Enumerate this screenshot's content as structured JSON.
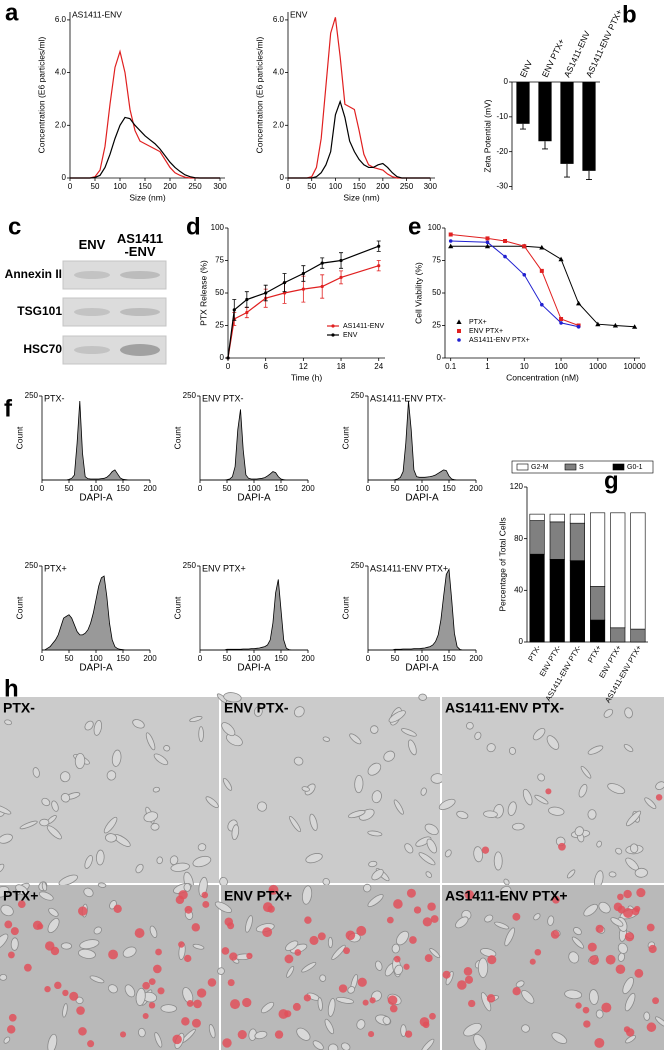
{
  "panel_labels": [
    "a",
    "b",
    "c",
    "d",
    "e",
    "f",
    "g",
    "h"
  ],
  "blot": {
    "columns": [
      "ENV",
      "AS1411\n-ENV"
    ],
    "rows": [
      "Annexin II",
      "TSG101",
      "HSC70"
    ]
  },
  "micrographs": [
    "PTX-",
    "ENV PTX-",
    "AS1411-ENV PTX-",
    "PTX+",
    "ENV PTX+",
    "AS1411-ENV PTX+"
  ],
  "chart_data": [
    {
      "type": "line",
      "title": "AS1411-ENV",
      "xlabel": "Size (nm)",
      "ylabel": "Concentration (E6 particles/ml)",
      "xlim": [
        0,
        310
      ],
      "xticks": [
        0,
        50,
        100,
        150,
        200,
        250,
        300
      ],
      "ylim": [
        0,
        6.3
      ],
      "yticks": [
        0,
        {
          "value": 2,
          "label": "2.0"
        },
        {
          "value": 4,
          "label": "4.0"
        },
        {
          "value": 6,
          "label": "6.0"
        }
      ],
      "x": [
        0,
        10,
        20,
        30,
        40,
        50,
        60,
        70,
        80,
        90,
        100,
        110,
        120,
        130,
        140,
        150,
        160,
        170,
        180,
        190,
        200,
        210,
        220,
        230,
        240,
        250,
        260,
        270,
        280,
        290,
        300
      ],
      "series": [
        {
          "color": "#e02020",
          "values": [
            0,
            0,
            0,
            0,
            0,
            0.05,
            0.3,
            1.2,
            2.8,
            4.2,
            4.8,
            4.0,
            2.6,
            1.8,
            1.4,
            1.3,
            1.2,
            1.1,
            1.0,
            0.7,
            0.4,
            0.2,
            0.1,
            0.03,
            0,
            0,
            0,
            0,
            0,
            0,
            0
          ]
        },
        {
          "color": "#000000",
          "values": [
            0,
            0,
            0,
            0,
            0,
            0.02,
            0.1,
            0.4,
            0.9,
            1.5,
            2.0,
            2.3,
            2.25,
            2.0,
            1.8,
            1.6,
            1.45,
            1.3,
            1.1,
            0.85,
            0.6,
            0.4,
            0.25,
            0.12,
            0.05,
            0.01,
            0,
            0,
            0,
            0,
            0
          ]
        }
      ]
    },
    {
      "type": "line",
      "title": "ENV",
      "xlabel": "Size (nm)",
      "ylabel": "Concentration (E6 particles/ml)",
      "xlim": [
        0,
        310
      ],
      "xticks": [
        0,
        50,
        100,
        150,
        200,
        250,
        300
      ],
      "ylim": [
        0,
        6.3
      ],
      "yticks": [
        0,
        {
          "value": 2,
          "label": "2.0"
        },
        {
          "value": 4,
          "label": "4.0"
        },
        {
          "value": 6,
          "label": "6.0"
        }
      ],
      "x": [
        0,
        10,
        20,
        30,
        40,
        50,
        60,
        70,
        80,
        90,
        100,
        110,
        120,
        130,
        140,
        150,
        160,
        170,
        180,
        190,
        200,
        210,
        220,
        230,
        240,
        250,
        260,
        270,
        280,
        290,
        300
      ],
      "series": [
        {
          "color": "#e02020",
          "values": [
            0,
            0,
            0,
            0,
            0,
            0.05,
            0.4,
            1.5,
            3.5,
            5.5,
            6.1,
            4.6,
            2.8,
            2.7,
            2.6,
            1.8,
            0.9,
            0.5,
            0.4,
            0.35,
            0.3,
            0.15,
            0.05,
            0,
            0,
            0,
            0,
            0,
            0,
            0,
            0
          ]
        },
        {
          "color": "#000000",
          "values": [
            0,
            0,
            0,
            0,
            0,
            0,
            0.05,
            0.2,
            0.5,
            1.0,
            2.4,
            2.9,
            2.3,
            1.4,
            1.0,
            0.7,
            0.5,
            0.4,
            0.4,
            0.5,
            0.55,
            0.4,
            0.2,
            0.05,
            0,
            0,
            0,
            0,
            0,
            0,
            0
          ]
        }
      ]
    },
    {
      "type": "bar",
      "ylabel": "Zeta Potential (mV)",
      "categories": [
        "ENV",
        "ENV PTX+",
        "AS1411-ENV",
        "AS1411-ENV PTX+"
      ],
      "values": [
        -12,
        -17,
        -23.5,
        -25.5
      ],
      "errors": [
        1.5,
        2.2,
        3.8,
        2.5
      ],
      "color": "#000000",
      "ylim": [
        -31,
        0
      ],
      "yticks": [
        0,
        -10,
        -20,
        -30
      ]
    },
    {
      "type": "line",
      "xlabel": "Time (h)",
      "ylabel": "PTX Release (%)",
      "legend": "lower right",
      "xlim": [
        0,
        25
      ],
      "xticks": [
        0,
        6,
        12,
        18,
        24
      ],
      "ylim": [
        0,
        100
      ],
      "yticks": [
        0,
        25,
        50,
        75,
        100
      ],
      "x": [
        0,
        1,
        3,
        6,
        9,
        12,
        15,
        18,
        24
      ],
      "series": [
        {
          "name": "AS1411-ENV",
          "color": "#e02020",
          "values": [
            0,
            30,
            35,
            46,
            50,
            53,
            55,
            62,
            71
          ],
          "errors": [
            0,
            5,
            4,
            7,
            8,
            10,
            9,
            5,
            4
          ]
        },
        {
          "name": "ENV",
          "color": "#000000",
          "values": [
            0,
            37,
            45,
            50,
            58,
            65,
            73,
            75,
            86
          ],
          "errors": [
            0,
            8,
            6,
            6,
            7,
            6,
            4,
            6,
            4
          ]
        }
      ]
    },
    {
      "type": "scatter",
      "xlabel": "Concentration (nM)",
      "ylabel": "Cell Viability (%)",
      "legend": "lower left",
      "log": true,
      "xlim": [
        0.07,
        14000
      ],
      "xticks": [
        0.1,
        1,
        10,
        100,
        1000,
        10000
      ],
      "ylim": [
        0,
        100
      ],
      "yticks": [
        0,
        25,
        50,
        75,
        100
      ],
      "series": [
        {
          "name": "PTX+",
          "color": "#000000",
          "marker": "triangle",
          "x": [
            0.1,
            1,
            10,
            30,
            100,
            300,
            1000,
            3000,
            10000
          ],
          "values": [
            86,
            86,
            86,
            85,
            76,
            42,
            26,
            25,
            24
          ]
        },
        {
          "name": "ENV PTX+",
          "color": "#e02020",
          "marker": "square",
          "x": [
            0.1,
            1,
            3,
            10,
            30,
            100,
            300
          ],
          "values": [
            95,
            92,
            90,
            86,
            67,
            30,
            25
          ]
        },
        {
          "name": "AS1411-ENV PTX+",
          "color": "#2020d0",
          "marker": "circle",
          "x": [
            0.1,
            1,
            3,
            10,
            30,
            100,
            300
          ],
          "values": [
            90,
            89,
            78,
            64,
            41,
            27,
            24
          ]
        }
      ]
    },
    {
      "type": "area",
      "title": "PTX-",
      "xlabel": "DAPI-A",
      "ylabel": "Count",
      "color": "#999999",
      "xlim": [
        0,
        200
      ],
      "xticks": [
        0,
        50,
        100,
        150,
        200
      ],
      "ylim": [
        0,
        250
      ],
      "yticks": [
        250
      ],
      "x": [
        0,
        5,
        10,
        15,
        20,
        25,
        30,
        35,
        40,
        45,
        50,
        55,
        60,
        65,
        70,
        75,
        80,
        85,
        90,
        95,
        100,
        105,
        110,
        115,
        120,
        125,
        130,
        135,
        140,
        145,
        150,
        155,
        160,
        165,
        170,
        175,
        180,
        185,
        190,
        195,
        200
      ],
      "values": [
        0,
        0,
        0,
        0,
        0,
        0,
        0,
        0,
        0,
        0,
        2,
        5,
        15,
        110,
        235,
        80,
        10,
        4,
        3,
        3,
        3,
        3,
        4,
        5,
        8,
        15,
        25,
        30,
        18,
        6,
        2,
        1,
        0,
        0,
        0,
        0,
        0,
        0,
        0,
        0,
        0
      ]
    },
    {
      "type": "area",
      "title": "ENV PTX-",
      "xlabel": "DAPI-A",
      "ylabel": "Count",
      "color": "#999999",
      "xlim": [
        0,
        200
      ],
      "xticks": [
        0,
        50,
        100,
        150,
        200
      ],
      "ylim": [
        0,
        250
      ],
      "yticks": [
        250
      ],
      "x": [
        0,
        5,
        10,
        15,
        20,
        25,
        30,
        35,
        40,
        45,
        50,
        55,
        60,
        65,
        70,
        75,
        80,
        85,
        90,
        95,
        100,
        105,
        110,
        115,
        120,
        125,
        130,
        135,
        140,
        145,
        150,
        155,
        160,
        165,
        170,
        175,
        180,
        185,
        190,
        195,
        200
      ],
      "values": [
        0,
        0,
        0,
        0,
        0,
        0,
        0,
        0,
        0,
        0,
        1,
        3,
        10,
        40,
        150,
        210,
        90,
        15,
        5,
        3,
        3,
        3,
        4,
        5,
        7,
        12,
        18,
        25,
        22,
        10,
        3,
        1,
        0,
        0,
        0,
        0,
        0,
        0,
        0,
        0,
        0
      ]
    },
    {
      "type": "area",
      "title": "AS1411-ENV PTX-",
      "xlabel": "DAPI-A",
      "ylabel": "Count",
      "color": "#999999",
      "xlim": [
        0,
        200
      ],
      "xticks": [
        0,
        50,
        100,
        150,
        200
      ],
      "ylim": [
        0,
        250
      ],
      "yticks": [
        250
      ],
      "x": [
        0,
        5,
        10,
        15,
        20,
        25,
        30,
        35,
        40,
        45,
        50,
        55,
        60,
        65,
        70,
        75,
        80,
        85,
        90,
        95,
        100,
        105,
        110,
        115,
        120,
        125,
        130,
        135,
        140,
        145,
        150,
        155,
        160,
        165,
        170,
        175,
        180,
        185,
        190,
        195,
        200
      ],
      "values": [
        0,
        0,
        0,
        0,
        0,
        0,
        0,
        0,
        0,
        0,
        1,
        3,
        8,
        25,
        110,
        235,
        150,
        30,
        10,
        8,
        8,
        8,
        9,
        10,
        12,
        15,
        20,
        25,
        30,
        28,
        12,
        3,
        1,
        0,
        0,
        0,
        0,
        0,
        0,
        0,
        0
      ]
    },
    {
      "type": "area",
      "title": "PTX+",
      "xlabel": "DAPI-A",
      "ylabel": "Count",
      "color": "#999999",
      "xlim": [
        0,
        200
      ],
      "xticks": [
        0,
        50,
        100,
        150,
        200
      ],
      "ylim": [
        0,
        250
      ],
      "yticks": [
        250
      ],
      "x": [
        0,
        5,
        10,
        15,
        20,
        25,
        30,
        35,
        40,
        45,
        50,
        55,
        60,
        65,
        70,
        75,
        80,
        85,
        90,
        95,
        100,
        105,
        110,
        115,
        120,
        125,
        130,
        135,
        140,
        145,
        150,
        155,
        160,
        165,
        170,
        175,
        180,
        185,
        190,
        195,
        200
      ],
      "values": [
        0,
        0,
        5,
        10,
        20,
        30,
        45,
        70,
        95,
        100,
        105,
        95,
        75,
        55,
        45,
        45,
        50,
        60,
        80,
        110,
        150,
        190,
        215,
        220,
        160,
        80,
        30,
        10,
        4,
        2,
        1,
        0,
        0,
        0,
        0,
        0,
        0,
        0,
        0,
        0,
        0
      ]
    },
    {
      "type": "area",
      "title": "ENV PTX+",
      "xlabel": "DAPI-A",
      "ylabel": "Count",
      "color": "#999999",
      "xlim": [
        0,
        200
      ],
      "xticks": [
        0,
        50,
        100,
        150,
        200
      ],
      "ylim": [
        0,
        250
      ],
      "yticks": [
        250
      ],
      "x": [
        0,
        5,
        10,
        15,
        20,
        25,
        30,
        35,
        40,
        45,
        50,
        55,
        60,
        65,
        70,
        75,
        80,
        85,
        90,
        95,
        100,
        105,
        110,
        115,
        120,
        125,
        130,
        135,
        140,
        145,
        150,
        155,
        160,
        165,
        170,
        175,
        180,
        185,
        190,
        195,
        200
      ],
      "values": [
        0,
        0,
        0,
        0,
        0,
        0,
        0,
        0,
        0,
        0,
        2,
        2,
        2,
        2,
        2,
        2,
        3,
        3,
        3,
        4,
        4,
        5,
        6,
        8,
        10,
        15,
        30,
        80,
        170,
        210,
        120,
        30,
        5,
        1,
        0,
        0,
        0,
        0,
        0,
        0,
        0
      ]
    },
    {
      "type": "area",
      "title": "AS1411-ENV PTX+",
      "xlabel": "DAPI-A",
      "ylabel": "Count",
      "color": "#999999",
      "xlim": [
        0,
        200
      ],
      "xticks": [
        0,
        50,
        100,
        150,
        200
      ],
      "ylim": [
        0,
        250
      ],
      "yticks": [
        250
      ],
      "x": [
        0,
        5,
        10,
        15,
        20,
        25,
        30,
        35,
        40,
        45,
        50,
        55,
        60,
        65,
        70,
        75,
        80,
        85,
        90,
        95,
        100,
        105,
        110,
        115,
        120,
        125,
        130,
        135,
        140,
        145,
        150,
        155,
        160,
        165,
        170,
        175,
        180,
        185,
        190,
        195,
        200
      ],
      "values": [
        0,
        0,
        0,
        0,
        0,
        0,
        0,
        0,
        0,
        0,
        2,
        2,
        2,
        3,
        3,
        3,
        3,
        4,
        4,
        4,
        5,
        6,
        8,
        10,
        15,
        25,
        45,
        90,
        160,
        225,
        240,
        150,
        50,
        10,
        2,
        0,
        0,
        0,
        0,
        0,
        0
      ]
    },
    {
      "type": "stacked_bar",
      "ylabel": "Percentage of Total Cells",
      "legend": "top",
      "categories": [
        "PTX-",
        "ENV PTX-",
        "AS1411-ENV PTX-",
        "PTX+",
        "ENV PTX+",
        "AS1411-ENV PTX+"
      ],
      "ylim": [
        0,
        120
      ],
      "yticks": [
        0,
        40,
        80,
        120
      ],
      "series": [
        {
          "name": "G0-1",
          "color": "#000000",
          "values": [
            68,
            64,
            63,
            17,
            0,
            0
          ]
        },
        {
          "name": "S",
          "color": "#808080",
          "values": [
            26,
            29,
            29,
            26,
            11,
            10
          ]
        },
        {
          "name": "G2-M",
          "color": "#ffffff",
          "values": [
            5,
            6,
            7,
            57,
            89,
            90
          ]
        }
      ]
    }
  ]
}
